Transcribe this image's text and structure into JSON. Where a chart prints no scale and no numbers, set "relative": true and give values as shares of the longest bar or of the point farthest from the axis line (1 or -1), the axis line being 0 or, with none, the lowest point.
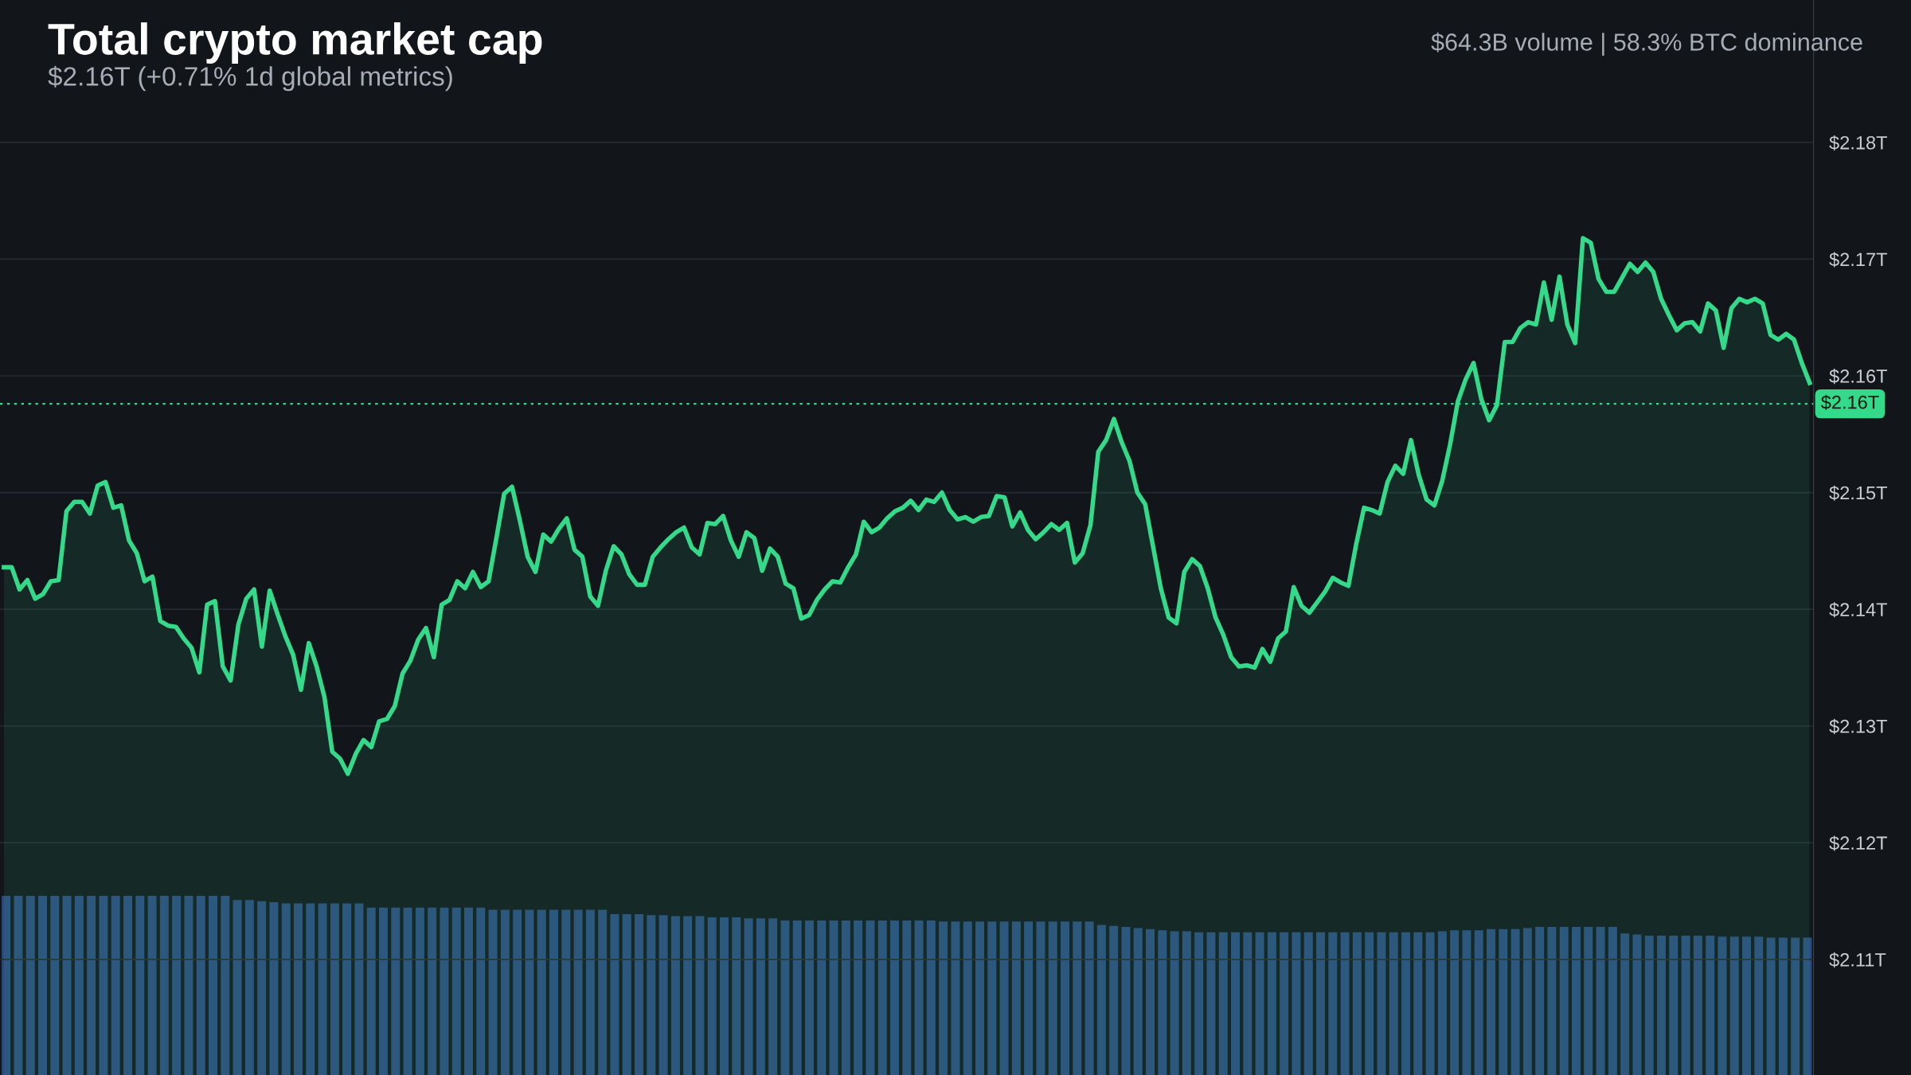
{
  "chart_data": [
    {
      "type": "area",
      "title": "Total crypto market cap",
      "subtitle": "$2.16T (+0.71% 1d global metrics)",
      "annotations": [
        "$64.3B volume | 58.3% BTC dominance"
      ],
      "categories": [
        null,
        null,
        null,
        null,
        null,
        null,
        null,
        null,
        null,
        null,
        null,
        null,
        null,
        null,
        null,
        null,
        null,
        null,
        null,
        null,
        null,
        null,
        null,
        null,
        null,
        null,
        null,
        null,
        null,
        null,
        null,
        null,
        null,
        null,
        null,
        null,
        null,
        null,
        null,
        null,
        null,
        null,
        null,
        null,
        null,
        null,
        null,
        null,
        null,
        null,
        null,
        null,
        null,
        null,
        null,
        null,
        null,
        null,
        null,
        null,
        null,
        null,
        null,
        null,
        null,
        null,
        null,
        null,
        null,
        null,
        null,
        null,
        null,
        null,
        null,
        null,
        null,
        null,
        null,
        null,
        null,
        null,
        null,
        null,
        null,
        null,
        null,
        null,
        null,
        null,
        null,
        null,
        null,
        null,
        null,
        null,
        null,
        null,
        null,
        null,
        null,
        null,
        null,
        null,
        null,
        null,
        null,
        null,
        null,
        null,
        null,
        null,
        null,
        null,
        null,
        null,
        null,
        null,
        null,
        null,
        null,
        null,
        null,
        null,
        null,
        null,
        null,
        null,
        null,
        null,
        null,
        null,
        null,
        null,
        null,
        null,
        null,
        null,
        null,
        null,
        null,
        null,
        null,
        null,
        null,
        null,
        null,
        null,
        null,
        null,
        null,
        null,
        null,
        null,
        null,
        null,
        null,
        null,
        null,
        null,
        null,
        null,
        null,
        null,
        null,
        null,
        null,
        null,
        null,
        null,
        null,
        null,
        null,
        null,
        null,
        null,
        null,
        null,
        null,
        null,
        null,
        null,
        null,
        null,
        null,
        null,
        null,
        null,
        null,
        null,
        null,
        null,
        null,
        null,
        null,
        null,
        null,
        null,
        null,
        null,
        null,
        null,
        null,
        null,
        null,
        null,
        null,
        null,
        null,
        null,
        null,
        null,
        null,
        null,
        null,
        null,
        null,
        null,
        null,
        null,
        null,
        null,
        null,
        null,
        null,
        null,
        null,
        null,
        null,
        null,
        null,
        null
      ],
      "ylim": [
        2.1001,
        2.1922
      ],
      "yticks": [
        {
          "value": 2.11,
          "label": "$2.11T"
        },
        {
          "value": 2.12,
          "label": "$2.12T"
        },
        {
          "value": 2.13,
          "label": "$2.13T"
        },
        {
          "value": 2.14,
          "label": "$2.14T"
        },
        {
          "value": 2.15,
          "label": "$2.15T"
        },
        {
          "value": 2.16,
          "label": "$2.16T"
        },
        {
          "value": 2.17,
          "label": "$2.17T"
        },
        {
          "value": 2.18,
          "label": "$2.18T"
        }
      ],
      "tick_labels": "y",
      "grid": "y",
      "ref_lines": [
        {
          "axis": "y",
          "value": 2.1576,
          "label": "$2.16T",
          "color": "#34d98a",
          "line_style": "dotted"
        }
      ],
      "series": [
        {
          "color": "#34d98a",
          "values": [
            2.1436,
            2.1436,
            2.1417,
            2.1425,
            2.1409,
            2.1413,
            2.1424,
            2.1425,
            2.1484,
            2.1492,
            2.1492,
            2.1482,
            2.1506,
            2.1509,
            2.1487,
            2.1489,
            2.1459,
            2.1448,
            2.1424,
            2.1428,
            2.139,
            2.1386,
            2.1385,
            2.1375,
            2.1367,
            2.1346,
            2.1404,
            2.1407,
            2.1351,
            2.1339,
            2.1387,
            2.1409,
            2.1417,
            2.1368,
            2.1416,
            2.1396,
            2.1377,
            2.1361,
            2.1331,
            2.1371,
            2.1351,
            2.1325,
            2.1278,
            2.1272,
            2.1259,
            2.1276,
            2.1288,
            2.1282,
            2.1304,
            2.1306,
            2.1317,
            2.1345,
            2.1356,
            2.1374,
            2.1384,
            2.1359,
            2.1404,
            2.1408,
            2.1424,
            2.1418,
            2.1432,
            2.1419,
            2.1424,
            2.1461,
            2.1499,
            2.1505,
            2.1476,
            2.1445,
            2.1432,
            2.1464,
            2.1458,
            2.1469,
            2.1478,
            2.1451,
            2.1445,
            2.1411,
            2.1403,
            2.1433,
            2.1454,
            2.1447,
            2.143,
            2.1421,
            2.1421,
            2.1445,
            2.1453,
            2.146,
            2.1466,
            2.147,
            2.1453,
            2.1447,
            2.1474,
            2.1473,
            2.148,
            2.1459,
            2.1445,
            2.1466,
            2.1461,
            2.1433,
            2.1452,
            2.1445,
            2.1422,
            2.1418,
            2.1392,
            2.1395,
            2.1408,
            2.1417,
            2.1424,
            2.1423,
            2.1436,
            2.1447,
            2.1475,
            2.1466,
            2.147,
            2.1478,
            2.1484,
            2.1487,
            2.1493,
            2.1485,
            2.1494,
            2.1492,
            2.15,
            2.1485,
            2.1477,
            2.1479,
            2.1475,
            2.1479,
            2.148,
            2.1497,
            2.1496,
            2.1471,
            2.1483,
            2.1468,
            2.146,
            2.1466,
            2.1473,
            2.1468,
            2.1474,
            2.144,
            2.1448,
            2.1472,
            2.1535,
            2.1545,
            2.1563,
            2.1543,
            2.1527,
            2.15,
            2.149,
            2.1454,
            2.1418,
            2.1393,
            2.1388,
            2.1432,
            2.1443,
            2.1437,
            2.1418,
            2.1393,
            2.1378,
            2.1359,
            2.1351,
            2.1352,
            2.135,
            2.1366,
            2.1355,
            2.1375,
            2.1381,
            2.1419,
            2.1403,
            2.1397,
            2.1406,
            2.1415,
            2.1427,
            2.1423,
            2.142,
            2.1456,
            2.1487,
            2.1485,
            2.1482,
            2.1509,
            2.1523,
            2.1516,
            2.1545,
            2.1515,
            2.1494,
            2.1489,
            2.151,
            2.1541,
            2.1578,
            2.1597,
            2.1611,
            2.158,
            2.1562,
            2.1575,
            2.1629,
            2.1629,
            2.1641,
            2.1646,
            2.1644,
            2.168,
            2.1648,
            2.1685,
            2.1644,
            2.1628,
            2.1718,
            2.1714,
            2.1683,
            2.1672,
            2.1672,
            2.1684,
            2.1696,
            2.1689,
            2.1697,
            2.1689,
            2.1666,
            2.1652,
            2.1639,
            2.1645,
            2.1646,
            2.1638,
            2.1662,
            2.1656,
            2.1624,
            2.1658,
            2.1666,
            2.1663,
            2.1666,
            2.1662,
            2.1635,
            2.1631,
            2.1636,
            2.1631,
            2.1611,
            2.1594
          ]
        }
      ]
    },
    {
      "type": "bar",
      "relative": true,
      "color": "#2c4a7c",
      "tick_labels": false,
      "categories": [
        null,
        null,
        null,
        null,
        null,
        null,
        null,
        null,
        null,
        null,
        null,
        null,
        null,
        null,
        null,
        null,
        null,
        null,
        null,
        null,
        null,
        null,
        null,
        null,
        null,
        null,
        null,
        null,
        null,
        null,
        null,
        null,
        null,
        null,
        null,
        null,
        null,
        null,
        null,
        null,
        null,
        null,
        null,
        null,
        null,
        null,
        null,
        null,
        null,
        null,
        null,
        null,
        null,
        null,
        null,
        null,
        null,
        null,
        null,
        null,
        null,
        null,
        null,
        null,
        null,
        null,
        null,
        null,
        null,
        null,
        null,
        null,
        null,
        null,
        null,
        null,
        null,
        null,
        null,
        null,
        null,
        null,
        null,
        null,
        null,
        null,
        null,
        null,
        null,
        null,
        null,
        null,
        null,
        null,
        null,
        null,
        null,
        null,
        null,
        null,
        null,
        null,
        null,
        null,
        null,
        null,
        null,
        null,
        null,
        null,
        null,
        null,
        null,
        null,
        null,
        null,
        null,
        null,
        null,
        null,
        null,
        null,
        null,
        null,
        null,
        null,
        null,
        null,
        null,
        null,
        null,
        null,
        null,
        null,
        null,
        null,
        null,
        null,
        null,
        null,
        null,
        null,
        null,
        null,
        null,
        null,
        null,
        null,
        null
      ],
      "values": [
        1,
        1,
        1,
        1,
        1,
        1,
        1,
        1,
        1,
        1,
        1,
        1,
        1,
        1,
        1,
        1,
        1,
        1,
        1,
        0.976,
        0.976,
        0.97,
        0.964,
        0.958,
        0.958,
        0.958,
        0.958,
        0.958,
        0.958,
        0.958,
        0.934,
        0.934,
        0.934,
        0.934,
        0.934,
        0.934,
        0.934,
        0.934,
        0.934,
        0.934,
        0.922,
        0.922,
        0.922,
        0.922,
        0.922,
        0.922,
        0.922,
        0.922,
        0.922,
        0.922,
        0.898,
        0.898,
        0.898,
        0.892,
        0.892,
        0.886,
        0.886,
        0.886,
        0.88,
        0.88,
        0.88,
        0.874,
        0.874,
        0.874,
        0.862,
        0.862,
        0.862,
        0.862,
        0.862,
        0.862,
        0.862,
        0.862,
        0.862,
        0.862,
        0.862,
        0.862,
        0.862,
        0.856,
        0.856,
        0.856,
        0.856,
        0.856,
        0.856,
        0.856,
        0.856,
        0.856,
        0.856,
        0.856,
        0.856,
        0.856,
        0.838,
        0.832,
        0.826,
        0.82,
        0.814,
        0.808,
        0.802,
        0.802,
        0.796,
        0.796,
        0.796,
        0.796,
        0.796,
        0.796,
        0.796,
        0.796,
        0.796,
        0.796,
        0.796,
        0.796,
        0.796,
        0.796,
        0.796,
        0.796,
        0.796,
        0.796,
        0.796,
        0.796,
        0.802,
        0.808,
        0.808,
        0.808,
        0.814,
        0.814,
        0.814,
        0.82,
        0.826,
        0.826,
        0.826,
        0.826,
        0.826,
        0.826,
        0.826,
        0.79,
        0.784,
        0.778,
        0.778,
        0.778,
        0.778,
        0.778,
        0.778,
        0.772,
        0.772,
        0.772,
        0.772,
        0.766,
        0.766,
        0.766,
        0.766
      ]
    }
  ]
}
